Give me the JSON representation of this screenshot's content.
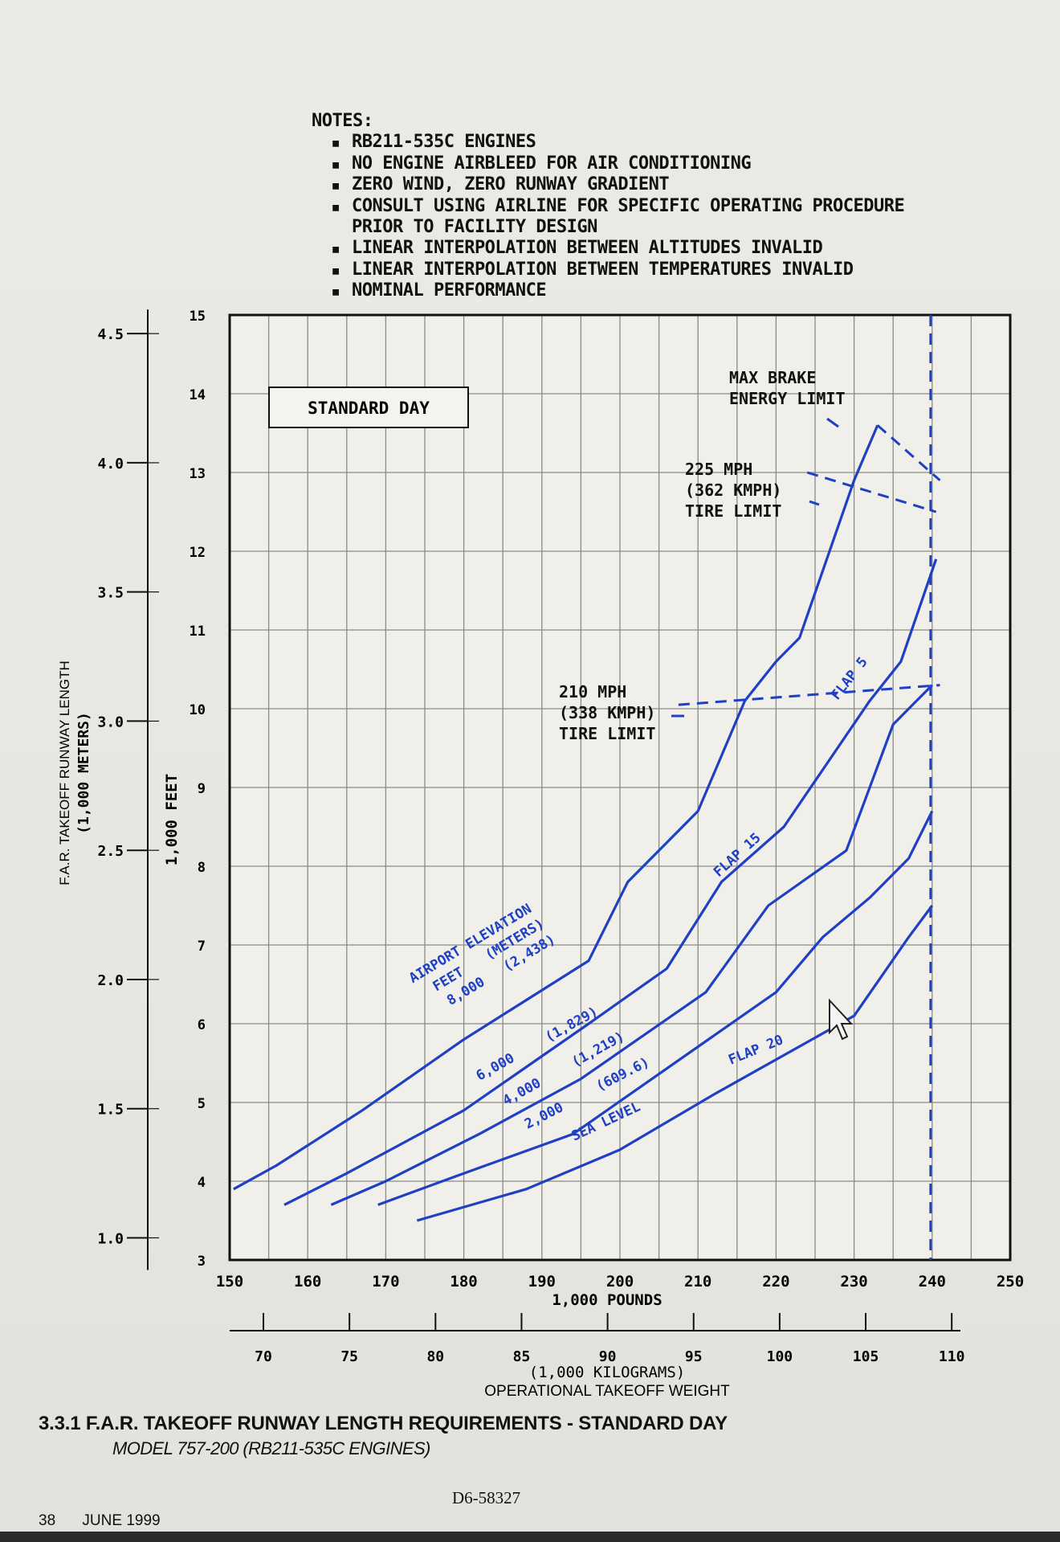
{
  "notes": {
    "title": "NOTES:",
    "items": [
      "RB211-535C ENGINES",
      "NO ENGINE AIRBLEED FOR AIR CONDITIONING",
      "ZERO WIND, ZERO RUNWAY GRADIENT",
      "CONSULT USING AIRLINE FOR SPECIFIC OPERATING PROCEDURE PRIOR TO FACILITY DESIGN",
      "LINEAR INTERPOLATION BETWEEN ALTITUDES INVALID",
      "LINEAR INTERPOLATION BETWEEN TEMPERATURES INVALID",
      "NOMINAL PERFORMANCE"
    ]
  },
  "caption": {
    "title": "3.3.1 F.A.R. TAKEOFF RUNWAY LENGTH REQUIREMENTS - STANDARD DAY",
    "subtitle": "MODEL 757-200 (RB211-535C ENGINES)"
  },
  "doc_number": "D6-58327",
  "footer": {
    "page": "38",
    "date": "JUNE 1999"
  },
  "chart_data": {
    "type": "line",
    "box_label": "STANDARD DAY",
    "xlabel": "1,000 POUNDS",
    "x2label_units": "(1,000 KILOGRAMS)",
    "x2label": "OPERATIONAL TAKEOFF WEIGHT",
    "ylabel": "1,000 FEET",
    "y2label_line1": "F.A.R. TAKEOFF RUNWAY LENGTH",
    "y2label_line2": "(1,000 METERS)",
    "xlim": [
      150,
      250
    ],
    "ylim": [
      3,
      15
    ],
    "x_ticks": [
      "150",
      "160",
      "170",
      "180",
      "190",
      "200",
      "210",
      "220",
      "230",
      "240",
      "250"
    ],
    "y_ticks": [
      "3",
      "4",
      "5",
      "6",
      "7",
      "8",
      "9",
      "10",
      "11",
      "12",
      "13",
      "14",
      "15"
    ],
    "kg_ticks": [
      "70",
      "75",
      "80",
      "85",
      "90",
      "95",
      "100",
      "105",
      "110"
    ],
    "m_ticks": [
      "1.0",
      "1.5",
      "2.0",
      "2.5",
      "3.0",
      "3.5",
      "4.0",
      "4.5"
    ],
    "grid": true,
    "line_color": "#1f3fc4",
    "series": [
      {
        "name": "8,000 (2,438)",
        "x": [
          150.5,
          156,
          167,
          180,
          196,
          201,
          210,
          216,
          220,
          223,
          230,
          233
        ],
        "y": [
          3.9,
          4.2,
          4.9,
          5.8,
          6.8,
          7.8,
          8.7,
          10.1,
          10.6,
          10.9,
          12.9,
          13.6
        ]
      },
      {
        "name": "6,000 (1,829)",
        "x": [
          157,
          165,
          180,
          196,
          206,
          213,
          221,
          232,
          236,
          240.5
        ],
        "y": [
          3.7,
          4.1,
          4.9,
          6.0,
          6.7,
          7.8,
          8.5,
          10.1,
          10.6,
          11.9
        ]
      },
      {
        "name": "4,000 (1,219)",
        "x": [
          163,
          170,
          182,
          195,
          211,
          219,
          229,
          235,
          240
        ],
        "y": [
          3.7,
          4.0,
          4.6,
          5.3,
          6.4,
          7.5,
          8.2,
          9.8,
          10.3
        ]
      },
      {
        "name": "2,000 (609.6)",
        "x": [
          169,
          180,
          194,
          220,
          226,
          232,
          237,
          240
        ],
        "y": [
          3.7,
          4.1,
          4.6,
          6.4,
          7.1,
          7.6,
          8.1,
          8.7
        ]
      },
      {
        "name": "SEA LEVEL",
        "x": [
          174,
          188,
          200,
          212,
          230,
          237,
          240
        ],
        "y": [
          3.5,
          3.9,
          4.4,
          5.1,
          6.1,
          7.1,
          7.5
        ]
      }
    ],
    "limit_lines": [
      {
        "label_lines": [
          "210 MPH",
          "(338 KMPH)",
          "TIRE LIMIT"
        ],
        "x": [
          207.5,
          241
        ],
        "y": [
          10.05,
          10.3
        ]
      },
      {
        "label_lines": [
          "225 MPH",
          "(362 KMPH)",
          "TIRE LIMIT"
        ],
        "x": [
          224,
          240.5
        ],
        "y": [
          13.0,
          12.5
        ]
      },
      {
        "label_lines": [
          "MAX BRAKE",
          "ENERGY LIMIT"
        ],
        "x": [
          233,
          241
        ],
        "y": [
          13.6,
          12.9
        ]
      }
    ],
    "vertical_limit_x": 239.8,
    "annotations": [
      "AIRPORT ELEVATION",
      "FEET",
      "(METERS)",
      "FLAP 5",
      "FLAP 15",
      "FLAP 20"
    ]
  }
}
